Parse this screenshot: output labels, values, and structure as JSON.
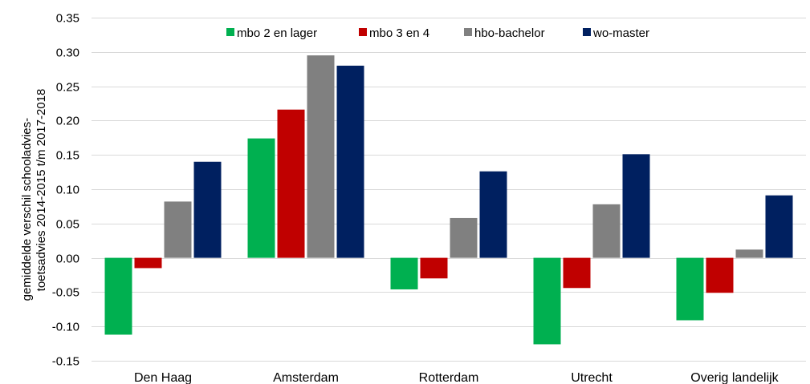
{
  "chart_data": {
    "type": "bar",
    "categories": [
      "Den Haag",
      "Amsterdam",
      "Rotterdam",
      "Utrecht",
      "Overig landelijk"
    ],
    "series": [
      {
        "name": "mbo 2 en lager",
        "color": "#00b050",
        "values": [
          -0.112,
          0.174,
          -0.046,
          -0.126,
          -0.091
        ]
      },
      {
        "name": "mbo 3 en 4",
        "color": "#c00000",
        "values": [
          -0.015,
          0.216,
          -0.03,
          -0.044,
          -0.051
        ]
      },
      {
        "name": "hbo-bachelor",
        "color": "#808080",
        "values": [
          0.082,
          0.295,
          0.058,
          0.078,
          0.012
        ]
      },
      {
        "name": "wo-master",
        "color": "#002060",
        "values": [
          0.14,
          0.28,
          0.126,
          0.151,
          0.091
        ]
      }
    ],
    "ylabel_lines": [
      "gemiddelde verschil schooladvies-",
      "toetsadvies 2014-2015 t/m 2017-2018"
    ],
    "ylim": [
      -0.15,
      0.35
    ],
    "yticks": [
      -0.15,
      -0.1,
      -0.05,
      0.0,
      0.05,
      0.1,
      0.15,
      0.2,
      0.25,
      0.3,
      0.35
    ],
    "ytick_labels": [
      "-0.15",
      "-0.10",
      "-0.05",
      "0.00",
      "0.05",
      "0.10",
      "0.15",
      "0.20",
      "0.25",
      "0.30",
      "0.35"
    ],
    "grid": true,
    "legend_position": "top-center"
  }
}
